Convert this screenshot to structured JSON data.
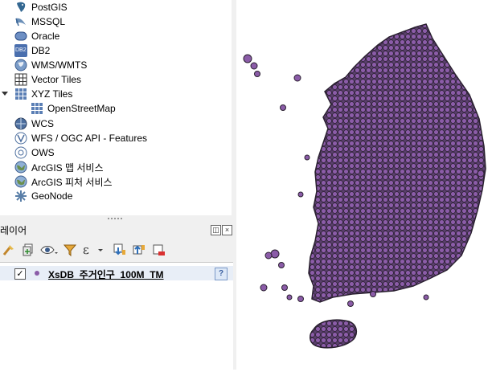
{
  "browser": {
    "items": [
      {
        "label": "PostGIS",
        "icon": "postgis-icon"
      },
      {
        "label": "MSSQL",
        "icon": "mssql-icon"
      },
      {
        "label": "Oracle",
        "icon": "oracle-icon"
      },
      {
        "label": "DB2",
        "icon": "db2-icon",
        "icon_text": "DB2"
      },
      {
        "label": "WMS/WMTS",
        "icon": "wms-globe-icon"
      },
      {
        "label": "Vector Tiles",
        "icon": "vector-tiles-icon"
      },
      {
        "label": "XYZ Tiles",
        "icon": "xyz-tiles-icon"
      },
      {
        "label": "OpenStreetMap",
        "icon": "xyz-tiles-icon"
      },
      {
        "label": "WCS",
        "icon": "wcs-icon"
      },
      {
        "label": "WFS / OGC API - Features",
        "icon": "wfs-icon"
      },
      {
        "label": "OWS",
        "icon": "ows-icon"
      },
      {
        "label": "ArcGIS 맵 서비스",
        "icon": "arcgis-globe-icon"
      },
      {
        "label": "ArcGIS 피처 서비스",
        "icon": "arcgis-globe-icon"
      },
      {
        "label": "GeoNode",
        "icon": "geonode-icon"
      }
    ]
  },
  "layers_panel": {
    "title": "레이어",
    "layer": {
      "name": "XsDB_주거인구_100M_TM",
      "checked": "✓",
      "help": "?",
      "color": "#8b5ca8"
    }
  },
  "map": {
    "fill_color": "#8b5ca8",
    "stroke_color": "#2a2030"
  }
}
